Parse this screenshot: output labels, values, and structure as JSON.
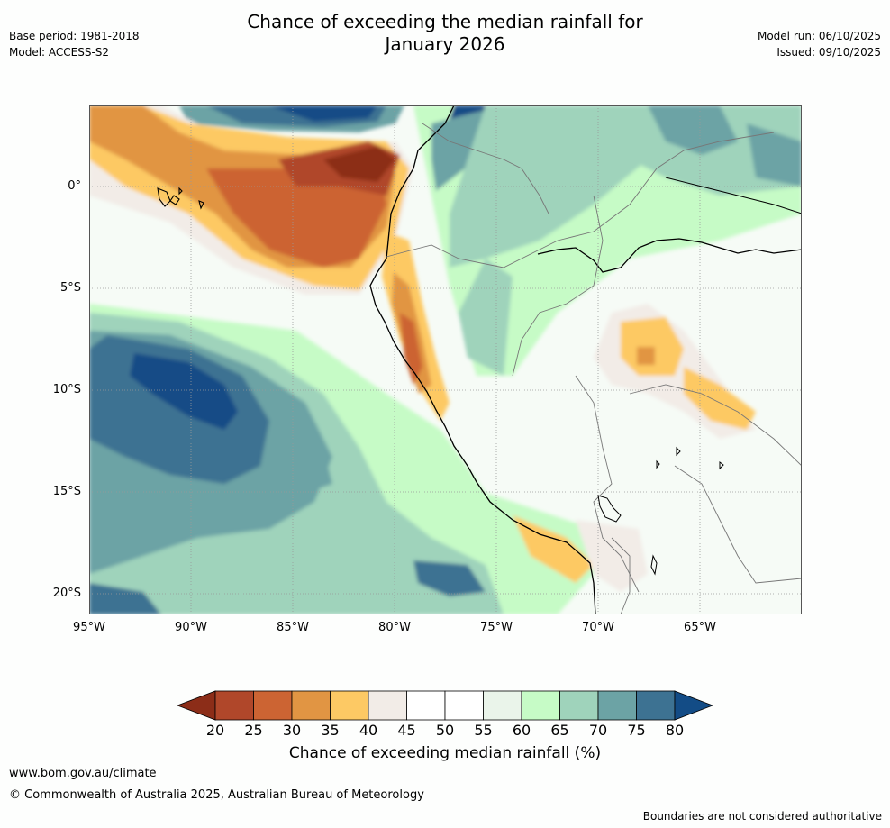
{
  "header": {
    "title_line1": "Chance of exceeding the median rainfall for",
    "title_line2": "January 2026",
    "base_period": "Base period: 1981-2018",
    "model": "Model: ACCESS-S2",
    "model_run": "Model run: 06/10/2025",
    "issued": "Issued: 09/10/2025"
  },
  "map": {
    "region": "Western South America and eastern Pacific",
    "y_ticks": [
      "0°",
      "5°S",
      "10°S",
      "15°S",
      "20°S"
    ],
    "x_ticks": [
      "95°W",
      "90°W",
      "85°W",
      "80°W",
      "75°W",
      "70°W",
      "65°W"
    ]
  },
  "colorbar": {
    "levels": [
      "20",
      "25",
      "30",
      "35",
      "40",
      "45",
      "50",
      "55",
      "60",
      "65",
      "70",
      "75",
      "80"
    ],
    "colors": [
      "#8c2d18",
      "#b0472a",
      "#cc6433",
      "#e19543",
      "#fdc964",
      "#f2ece7",
      "#ffffff",
      "#ffffff",
      "#eaf4ea",
      "#c6fbc6",
      "#9fd3bb",
      "#6ca3a5",
      "#3d7292",
      "#134c86"
    ],
    "label": "Chance of exceeding median rainfall (%)"
  },
  "footer": {
    "site": "www.bom.gov.au/climate",
    "copyright": "© Commonwealth of Australia 2025, Australian Bureau of Meteorology",
    "disclaimer": "Boundaries are not considered authoritative"
  }
}
